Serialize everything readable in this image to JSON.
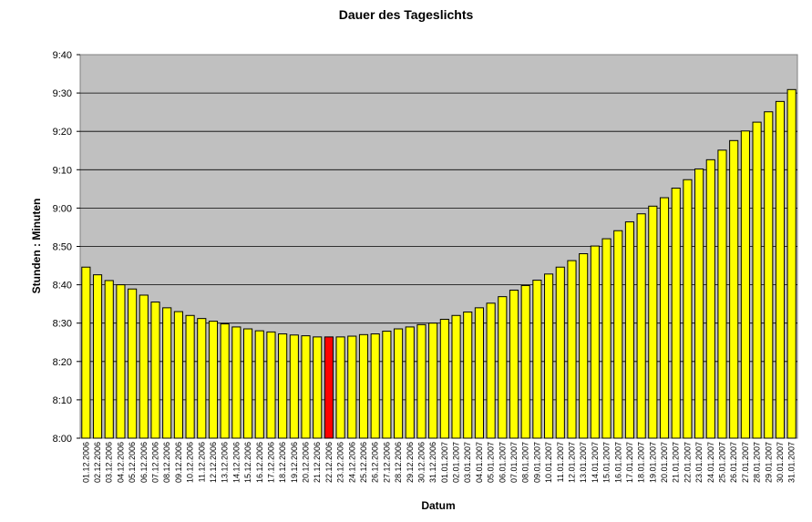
{
  "chart_data": {
    "type": "bar",
    "title": "Dauer des Tageslichts",
    "xlabel": "Datum",
    "ylabel": "Stunden : Minuten",
    "ylim": [
      480,
      580
    ],
    "y_unit": "minutes",
    "yticks": [
      "8:00",
      "8:10",
      "8:20",
      "8:30",
      "8:40",
      "8:50",
      "9:00",
      "9:10",
      "9:20",
      "9:30",
      "9:40"
    ],
    "grid": true,
    "legend": "none",
    "colors": {
      "plot_background": "#c0c0c0",
      "bar": "#ffff00",
      "highlight_bar": "#ff0000",
      "bar_border": "#000000"
    },
    "highlight_category": "22.12.2006",
    "categories": [
      "01.12.2006",
      "02.12.2006",
      "03.12.2006",
      "04.12.2006",
      "05.12.2006",
      "06.12.2006",
      "07.12.2006",
      "08.12.2006",
      "09.12.2006",
      "10.12.2006",
      "11.12.2006",
      "12.12.2006",
      "13.12.2006",
      "14.12.2006",
      "15.12.2006",
      "16.12.2006",
      "17.12.2006",
      "18.12.2006",
      "19.12.2006",
      "20.12.2006",
      "21.12.2006",
      "22.12.2006",
      "23.12.2006",
      "24.12.2006",
      "25.12.2006",
      "26.12.2006",
      "27.12.2006",
      "28.12.2006",
      "29.12.2006",
      "30.12.2006",
      "31.12.2006",
      "01.01.2007",
      "02.01.2007",
      "03.01.2007",
      "04.01.2007",
      "05.01.2007",
      "06.01.2007",
      "07.01.2007",
      "08.01.2007",
      "09.01.2007",
      "10.01.2007",
      "11.01.2007",
      "12.01.2007",
      "13.01.2007",
      "14.01.2007",
      "15.01.2007",
      "16.01.2007",
      "17.01.2007",
      "18.01.2007",
      "19.01.2007",
      "20.01.2007",
      "21.01.2007",
      "22.01.2007",
      "23.01.2007",
      "24.01.2007",
      "25.01.2007",
      "26.01.2007",
      "27.01.2007",
      "28.01.2007",
      "29.01.2007",
      "30.01.2007",
      "31.01.2007"
    ],
    "series": [
      {
        "values": [
          524.6,
          522.6,
          521.1,
          520.0,
          518.9,
          517.3,
          515.5,
          514.0,
          513.0,
          512.0,
          511.2,
          510.5,
          509.8,
          509.0,
          508.5,
          508.0,
          507.7,
          507.2,
          506.9,
          506.7,
          506.4,
          506.4,
          506.4,
          506.6,
          507.0,
          507.2,
          507.9,
          508.5,
          509.0,
          509.6,
          510.0,
          511.0,
          512.0,
          512.9,
          514.0,
          515.2,
          516.9,
          518.6,
          519.8,
          521.2,
          522.8,
          524.6,
          526.3,
          528.1,
          530.1,
          532.0,
          534.1,
          536.4,
          538.5,
          540.5,
          542.7,
          545.2,
          547.4,
          550.2,
          552.6,
          555.1,
          557.6,
          560.1,
          562.4,
          565.1,
          567.8,
          570.9
        ]
      }
    ]
  }
}
